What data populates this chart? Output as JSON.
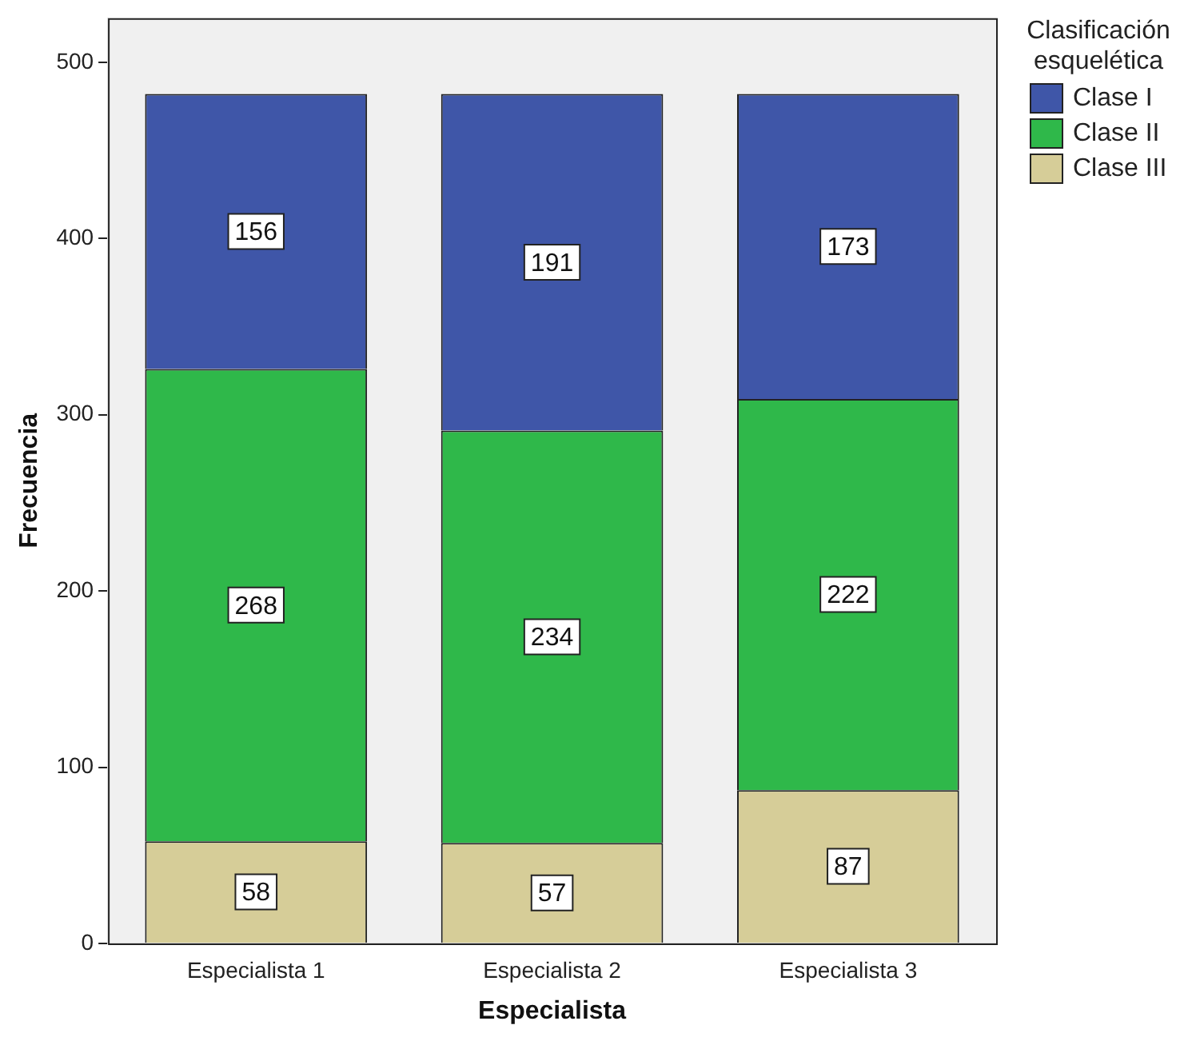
{
  "chart_data": {
    "type": "bar",
    "stacked": true,
    "xlabel": "Especialista",
    "ylabel": "Frecuencia",
    "legend_title": "Clasificación esquelética",
    "categories": [
      "Especialista 1",
      "Especialista 2",
      "Especialista 3"
    ],
    "series": [
      {
        "name": "Clase III",
        "color": "#d6cd98",
        "values": [
          58,
          57,
          87
        ]
      },
      {
        "name": "Clase II",
        "color": "#2fb84a",
        "values": [
          268,
          234,
          222
        ]
      },
      {
        "name": "Clase I",
        "color": "#3f56a8",
        "values": [
          156,
          191,
          173
        ]
      }
    ],
    "ylim": [
      0,
      525
    ],
    "yticks": [
      0,
      100,
      200,
      300,
      400,
      500
    ],
    "grid": false,
    "legend": "top right",
    "data_labels": true
  }
}
